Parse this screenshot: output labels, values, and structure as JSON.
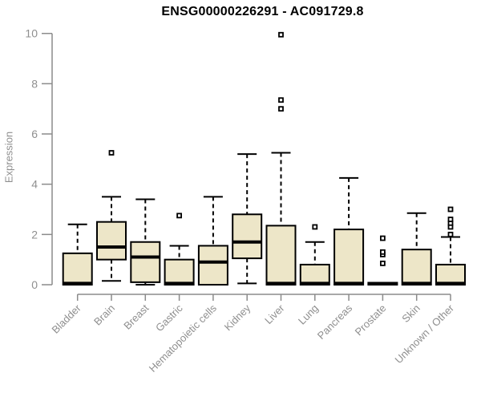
{
  "chart_data": {
    "type": "boxplot",
    "title": "ENSG00000226291 - AC091729.8",
    "ylabel": "Expression",
    "xlabel": "",
    "ylim": [
      0,
      10
    ],
    "yticks": [
      0,
      2,
      4,
      6,
      8,
      10
    ],
    "grid": false,
    "legend": "none",
    "categories": [
      "Bladder",
      "Brain",
      "Breast",
      "Gastric",
      "Hematopoietic cells",
      "Kidney",
      "Liver",
      "Lung",
      "Pancreas",
      "Prostate",
      "Skin",
      "Unknown / Other"
    ],
    "series": [
      {
        "category": "Bladder",
        "whisker_low": 0,
        "q1": 0,
        "median": 0.05,
        "q3": 1.25,
        "whisker_high": 2.4,
        "outliers": []
      },
      {
        "category": "Brain",
        "whisker_low": 0.15,
        "q1": 1.0,
        "median": 1.5,
        "q3": 2.5,
        "whisker_high": 3.5,
        "outliers": [
          5.25
        ]
      },
      {
        "category": "Breast",
        "whisker_low": 0,
        "q1": 0.1,
        "median": 1.1,
        "q3": 1.7,
        "whisker_high": 3.4,
        "outliers": []
      },
      {
        "category": "Gastric",
        "whisker_low": 0,
        "q1": 0,
        "median": 0.05,
        "q3": 1.0,
        "whisker_high": 1.55,
        "outliers": [
          2.75
        ]
      },
      {
        "category": "Hematopoietic cells",
        "whisker_low": 0,
        "q1": 0,
        "median": 0.9,
        "q3": 1.55,
        "whisker_high": 3.5,
        "outliers": []
      },
      {
        "category": "Kidney",
        "whisker_low": 0.05,
        "q1": 1.05,
        "median": 1.7,
        "q3": 2.8,
        "whisker_high": 5.2,
        "outliers": []
      },
      {
        "category": "Liver",
        "whisker_low": 0,
        "q1": 0,
        "median": 0.05,
        "q3": 2.35,
        "whisker_high": 5.25,
        "outliers": [
          7.0,
          7.35,
          9.95
        ]
      },
      {
        "category": "Lung",
        "whisker_low": 0,
        "q1": 0,
        "median": 0.05,
        "q3": 0.8,
        "whisker_high": 1.7,
        "outliers": [
          2.3
        ]
      },
      {
        "category": "Pancreas",
        "whisker_low": 0,
        "q1": 0,
        "median": 0.05,
        "q3": 2.2,
        "whisker_high": 4.25,
        "outliers": []
      },
      {
        "category": "Prostate",
        "whisker_low": 0,
        "q1": 0,
        "median": 0.04,
        "q3": 0.08,
        "whisker_high": 0.08,
        "outliers": [
          0.85,
          1.2,
          1.3,
          1.85
        ]
      },
      {
        "category": "Skin",
        "whisker_low": 0,
        "q1": 0,
        "median": 0.05,
        "q3": 1.4,
        "whisker_high": 2.85,
        "outliers": []
      },
      {
        "category": "Unknown / Other",
        "whisker_low": 0,
        "q1": 0,
        "median": 0.05,
        "q3": 0.8,
        "whisker_high": 1.9,
        "outliers": [
          2.0,
          2.3,
          2.45,
          2.6,
          3.0
        ]
      }
    ],
    "colors": {
      "box_fill": "#EDE6C8",
      "box_border": "#000000",
      "median": "#000000",
      "whisker": "#000000",
      "outlier_fill": "#ffffff",
      "axis": "#8b8b8b",
      "tick_label": "#8f8f8f",
      "title": "#000000"
    }
  }
}
